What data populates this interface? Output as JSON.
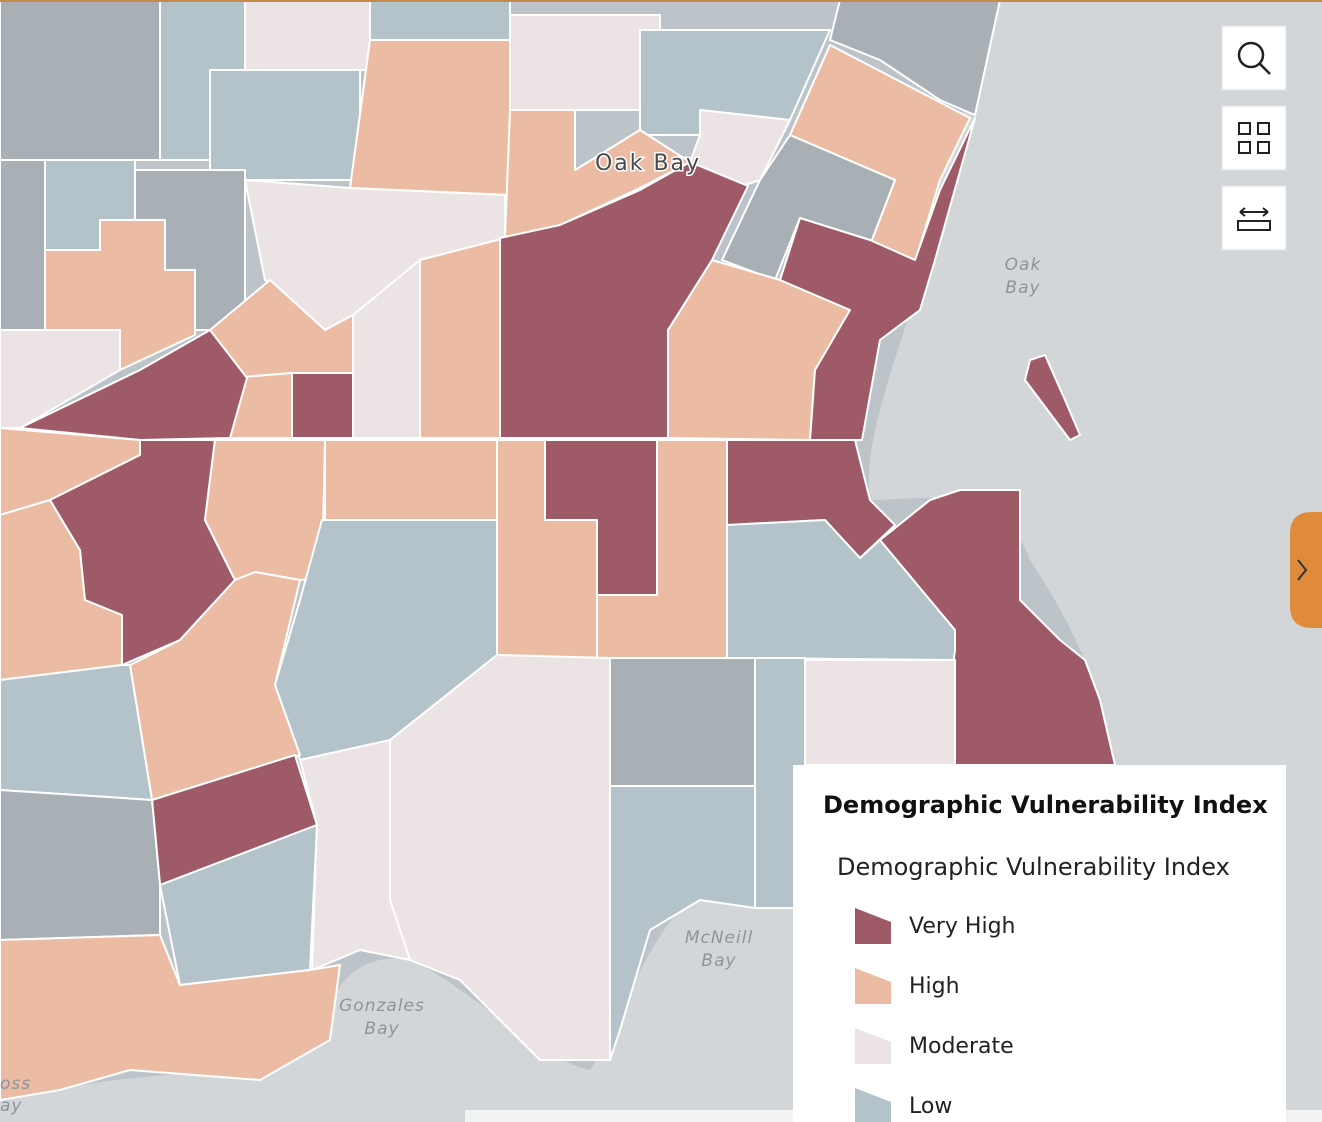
{
  "map": {
    "places": [
      {
        "label": "Oak Bay"
      }
    ],
    "water_labels": [
      {
        "lines": [
          "Oak",
          "Bay"
        ]
      },
      {
        "lines": [
          "McNeill",
          "Bay"
        ]
      },
      {
        "lines": [
          "Gonzales",
          "Bay"
        ]
      },
      {
        "lines": [
          "oss",
          "ay"
        ]
      }
    ]
  },
  "legend": {
    "title": "Demographic Vulnerability Index",
    "layer": "Demographic Vulnerability Index",
    "items": [
      {
        "label": "Very High",
        "color": "#9e5b67"
      },
      {
        "label": "High",
        "color": "#ebbca3"
      },
      {
        "label": "Moderate",
        "color": "#ece3e4"
      },
      {
        "label": "Low",
        "color": "#b4c2ca"
      }
    ]
  }
}
